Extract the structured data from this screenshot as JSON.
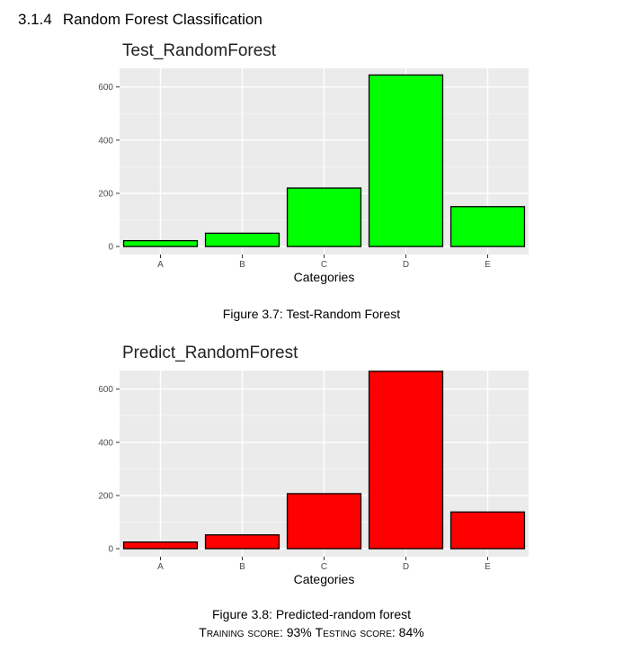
{
  "section": {
    "number": "3.1.4",
    "title": "Random Forest Classification"
  },
  "figures": [
    {
      "caption": "Figure 3.7: Test-Random Forest",
      "chart_data": {
        "type": "bar",
        "title": "Test_RandomForest",
        "categories": [
          "A",
          "B",
          "C",
          "D",
          "E"
        ],
        "values": [
          22,
          50,
          220,
          645,
          150
        ],
        "xlabel": "Categories",
        "ylabel": "",
        "ylim": [
          0,
          640
        ],
        "yticks": [
          0,
          200,
          400,
          600
        ],
        "bar_color": "#00ff00",
        "panel_color": "#ebebeb",
        "grid": true,
        "legend": "none"
      }
    },
    {
      "caption": "Figure 3.8: Predicted-random forest",
      "chart_data": {
        "type": "bar",
        "title": "Predict_RandomForest",
        "categories": [
          "A",
          "B",
          "C",
          "D",
          "E"
        ],
        "values": [
          25,
          52,
          207,
          667,
          138
        ],
        "xlabel": "Categories",
        "ylabel": "",
        "ylim": [
          0,
          640
        ],
        "yticks": [
          0,
          200,
          400,
          600
        ],
        "bar_color": "#ff0000",
        "panel_color": "#ebebeb",
        "grid": true,
        "legend": "none"
      }
    }
  ],
  "scores": {
    "training_label": "Training score:",
    "training_value": "93%",
    "testing_label": "Testing score:",
    "testing_value": "84%"
  }
}
